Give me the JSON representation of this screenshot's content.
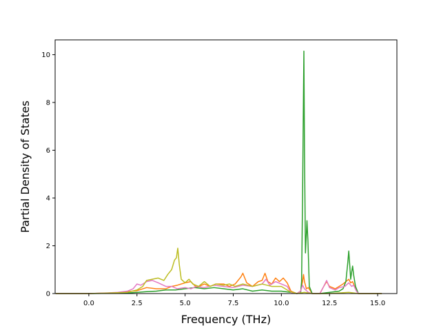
{
  "chart_data": {
    "type": "line",
    "title": "",
    "xlabel": "Frequency (THz)",
    "ylabel": "Partial Density of States",
    "xlim": [
      -1.75,
      16.0
    ],
    "ylim": [
      0,
      10.62
    ],
    "xticks": [
      0.0,
      2.5,
      5.0,
      7.5,
      10.0,
      12.5,
      15.0
    ],
    "xtick_labels": [
      "0.0",
      "2.5",
      "5.0",
      "7.5",
      "10.0",
      "12.5",
      "15.0"
    ],
    "yticks": [
      0,
      2,
      4,
      6,
      8,
      10
    ],
    "ytick_labels": [
      "0",
      "2",
      "4",
      "6",
      "8",
      "10"
    ],
    "grid": false,
    "legend": "none",
    "series": [
      {
        "color": "#ff7f0e",
        "points": [
          [
            -1.7,
            0
          ],
          [
            0.0,
            0.0
          ],
          [
            1.0,
            0.02
          ],
          [
            1.5,
            0.04
          ],
          [
            2.0,
            0.08
          ],
          [
            2.5,
            0.12
          ],
          [
            3.0,
            0.25
          ],
          [
            3.5,
            0.2
          ],
          [
            4.0,
            0.2
          ],
          [
            4.3,
            0.3
          ],
          [
            4.6,
            0.35
          ],
          [
            5.0,
            0.45
          ],
          [
            5.3,
            0.5
          ],
          [
            5.6,
            0.25
          ],
          [
            6.0,
            0.4
          ],
          [
            6.3,
            0.3
          ],
          [
            6.6,
            0.4
          ],
          [
            7.0,
            0.4
          ],
          [
            7.3,
            0.3
          ],
          [
            7.6,
            0.4
          ],
          [
            7.9,
            0.7
          ],
          [
            8.0,
            0.85
          ],
          [
            8.2,
            0.45
          ],
          [
            8.5,
            0.3
          ],
          [
            8.8,
            0.5
          ],
          [
            9.0,
            0.55
          ],
          [
            9.15,
            0.85
          ],
          [
            9.3,
            0.5
          ],
          [
            9.5,
            0.4
          ],
          [
            9.7,
            0.65
          ],
          [
            9.9,
            0.5
          ],
          [
            10.1,
            0.65
          ],
          [
            10.3,
            0.45
          ],
          [
            10.5,
            0.1
          ],
          [
            10.8,
            0.0
          ],
          [
            11.0,
            0.1
          ],
          [
            11.1,
            0.5
          ],
          [
            11.15,
            0.8
          ],
          [
            11.2,
            0.5
          ],
          [
            11.3,
            0.2
          ],
          [
            11.4,
            0.25
          ],
          [
            11.6,
            0.0
          ],
          [
            12.0,
            0.0
          ],
          [
            12.2,
            0.3
          ],
          [
            12.35,
            0.5
          ],
          [
            12.5,
            0.3
          ],
          [
            12.8,
            0.2
          ],
          [
            13.0,
            0.3
          ],
          [
            13.2,
            0.4
          ],
          [
            13.5,
            0.6
          ],
          [
            13.6,
            0.45
          ],
          [
            13.7,
            0.5
          ],
          [
            13.85,
            0.2
          ],
          [
            14.0,
            0.0
          ],
          [
            15.2,
            0
          ]
        ]
      },
      {
        "color": "#2ca02c",
        "points": [
          [
            -1.7,
            0
          ],
          [
            0.0,
            0.0
          ],
          [
            1.0,
            0.01
          ],
          [
            2.0,
            0.02
          ],
          [
            2.5,
            0.05
          ],
          [
            3.0,
            0.08
          ],
          [
            3.5,
            0.1
          ],
          [
            4.0,
            0.15
          ],
          [
            4.5,
            0.15
          ],
          [
            5.0,
            0.2
          ],
          [
            5.5,
            0.25
          ],
          [
            6.0,
            0.2
          ],
          [
            6.5,
            0.25
          ],
          [
            7.0,
            0.2
          ],
          [
            7.5,
            0.15
          ],
          [
            8.0,
            0.2
          ],
          [
            8.5,
            0.1
          ],
          [
            9.0,
            0.15
          ],
          [
            9.5,
            0.1
          ],
          [
            10.0,
            0.1
          ],
          [
            10.5,
            0.05
          ],
          [
            10.8,
            0.0
          ],
          [
            11.0,
            0.02
          ],
          [
            11.05,
            0.5
          ],
          [
            11.1,
            4.0
          ],
          [
            11.15,
            8.5
          ],
          [
            11.17,
            10.15
          ],
          [
            11.2,
            6.0
          ],
          [
            11.25,
            1.7
          ],
          [
            11.3,
            2.5
          ],
          [
            11.33,
            3.05
          ],
          [
            11.38,
            2.2
          ],
          [
            11.45,
            0.3
          ],
          [
            11.6,
            0.0
          ],
          [
            12.0,
            0.0
          ],
          [
            12.5,
            0.05
          ],
          [
            13.0,
            0.1
          ],
          [
            13.2,
            0.2
          ],
          [
            13.35,
            0.5
          ],
          [
            13.45,
            1.3
          ],
          [
            13.5,
            1.78
          ],
          [
            13.55,
            1.2
          ],
          [
            13.6,
            0.6
          ],
          [
            13.65,
            0.9
          ],
          [
            13.7,
            1.15
          ],
          [
            13.75,
            0.8
          ],
          [
            13.85,
            0.3
          ],
          [
            14.0,
            0.0
          ],
          [
            15.2,
            0
          ]
        ]
      },
      {
        "color": "#e377c2",
        "points": [
          [
            -1.7,
            0
          ],
          [
            0.0,
            0.0
          ],
          [
            1.0,
            0.03
          ],
          [
            1.5,
            0.05
          ],
          [
            2.0,
            0.1
          ],
          [
            2.3,
            0.2
          ],
          [
            2.5,
            0.4
          ],
          [
            2.7,
            0.35
          ],
          [
            3.0,
            0.5
          ],
          [
            3.3,
            0.55
          ],
          [
            3.6,
            0.45
          ],
          [
            4.0,
            0.3
          ],
          [
            4.3,
            0.3
          ],
          [
            4.6,
            0.2
          ],
          [
            5.0,
            0.25
          ],
          [
            5.3,
            0.2
          ],
          [
            5.6,
            0.3
          ],
          [
            6.0,
            0.25
          ],
          [
            6.5,
            0.35
          ],
          [
            7.0,
            0.3
          ],
          [
            7.5,
            0.25
          ],
          [
            8.0,
            0.35
          ],
          [
            8.5,
            0.3
          ],
          [
            9.0,
            0.4
          ],
          [
            9.2,
            0.6
          ],
          [
            9.4,
            0.35
          ],
          [
            9.7,
            0.5
          ],
          [
            10.0,
            0.4
          ],
          [
            10.3,
            0.3
          ],
          [
            10.5,
            0.05
          ],
          [
            10.8,
            0.0
          ],
          [
            11.0,
            0.1
          ],
          [
            11.1,
            0.35
          ],
          [
            11.2,
            0.2
          ],
          [
            11.4,
            0.05
          ],
          [
            11.6,
            0.0
          ],
          [
            12.0,
            0.0
          ],
          [
            12.2,
            0.3
          ],
          [
            12.35,
            0.55
          ],
          [
            12.5,
            0.25
          ],
          [
            12.8,
            0.15
          ],
          [
            13.0,
            0.25
          ],
          [
            13.3,
            0.3
          ],
          [
            13.5,
            0.45
          ],
          [
            13.65,
            0.3
          ],
          [
            13.75,
            0.35
          ],
          [
            13.9,
            0.1
          ],
          [
            14.0,
            0.0
          ],
          [
            15.2,
            0
          ]
        ]
      },
      {
        "color": "#bcbd22",
        "points": [
          [
            -1.7,
            0
          ],
          [
            0.0,
            0.0
          ],
          [
            1.0,
            0.02
          ],
          [
            2.0,
            0.05
          ],
          [
            2.5,
            0.15
          ],
          [
            2.8,
            0.3
          ],
          [
            3.0,
            0.55
          ],
          [
            3.3,
            0.6
          ],
          [
            3.6,
            0.65
          ],
          [
            3.9,
            0.55
          ],
          [
            4.1,
            0.8
          ],
          [
            4.3,
            1.0
          ],
          [
            4.45,
            1.4
          ],
          [
            4.55,
            1.5
          ],
          [
            4.62,
            1.9
          ],
          [
            4.7,
            1.2
          ],
          [
            4.8,
            0.6
          ],
          [
            5.0,
            0.45
          ],
          [
            5.2,
            0.6
          ],
          [
            5.4,
            0.4
          ],
          [
            5.7,
            0.3
          ],
          [
            6.0,
            0.5
          ],
          [
            6.3,
            0.3
          ],
          [
            6.6,
            0.4
          ],
          [
            7.0,
            0.35
          ],
          [
            7.3,
            0.4
          ],
          [
            7.6,
            0.3
          ],
          [
            8.0,
            0.4
          ],
          [
            8.5,
            0.3
          ],
          [
            9.0,
            0.4
          ],
          [
            9.5,
            0.3
          ],
          [
            10.0,
            0.3
          ],
          [
            10.4,
            0.1
          ],
          [
            10.8,
            0.0
          ],
          [
            11.2,
            0.05
          ],
          [
            11.6,
            0.0
          ],
          [
            12.5,
            0.0
          ],
          [
            13.5,
            0.05
          ],
          [
            14.0,
            0.0
          ],
          [
            15.2,
            0
          ]
        ]
      }
    ]
  }
}
